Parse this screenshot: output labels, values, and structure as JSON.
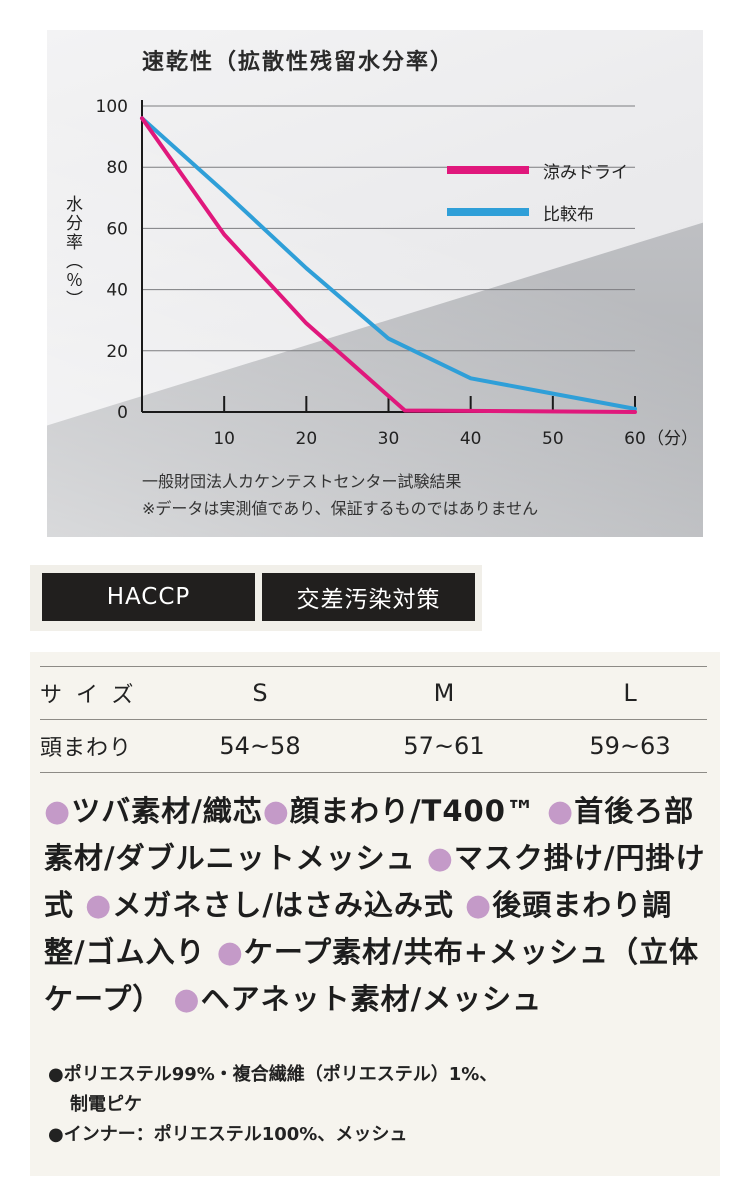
{
  "chart_data": {
    "type": "line",
    "title": "速乾性（拡散性残留水分率）",
    "ylabel": "水分率（％）",
    "xlabel": "（分）",
    "xlim": [
      0,
      60
    ],
    "ylim": [
      0,
      100
    ],
    "x_ticks": [
      "10",
      "20",
      "30",
      "40",
      "50",
      "60"
    ],
    "x_tick_values": [
      10,
      20,
      30,
      40,
      50,
      60
    ],
    "y_ticks": [
      "100",
      "80",
      "60",
      "40",
      "20",
      "0"
    ],
    "y_tick_values": [
      100,
      80,
      60,
      40,
      20,
      0
    ],
    "grid": true,
    "legend": "top-right",
    "series": [
      {
        "name": "涼みドライ",
        "color": "#e0187c",
        "points": [
          [
            0,
            96
          ],
          [
            10,
            58
          ],
          [
            20,
            29
          ],
          [
            32,
            0.5
          ],
          [
            60,
            0
          ]
        ]
      },
      {
        "name": "比較布",
        "color": "#2f9fd8",
        "points": [
          [
            0,
            96
          ],
          [
            10,
            72
          ],
          [
            20,
            47
          ],
          [
            30,
            24
          ],
          [
            40,
            11
          ],
          [
            50,
            6
          ],
          [
            60,
            1
          ]
        ]
      }
    ],
    "notes": [
      "一般財団法人カケンテストセンター試験結果",
      "※データは実測値であり、保証するものではありません"
    ]
  },
  "badges": [
    "HACCP",
    "交差汚染対策"
  ],
  "size_table": {
    "header_label": "サイズ",
    "sizes": [
      "S",
      "M",
      "L"
    ],
    "row_label": "頭まわり",
    "values": [
      "54~58",
      "57~61",
      "59~63"
    ]
  },
  "features": {
    "bullet": "●",
    "items": [
      "ツバ素材/織芯",
      "顔まわり/T400™",
      "首後ろ部素材/ダブルニットメッシュ",
      "マスク掛け/円掛け式",
      "メガネさし/はさみ込み式",
      "後頭まわり調整/ゴム入り",
      "ケープ素材/共布+メッシュ（立体ケープ）",
      "ヘアネット素材/メッシュ"
    ],
    "bullet_color": "#c49ac8"
  },
  "materials": {
    "line1": "●ポリエステル99%・複合繊維（ポリエステル）1%、",
    "line1b": "制電ピケ",
    "line2": "●インナー：ポリエステル100%、メッシュ"
  }
}
